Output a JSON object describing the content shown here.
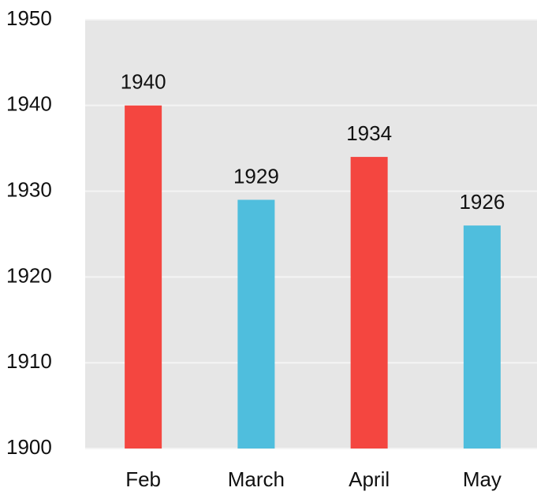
{
  "chart_data": {
    "type": "bar",
    "categories": [
      "Feb",
      "March",
      "April",
      "May"
    ],
    "values": [
      1940,
      1929,
      1934,
      1926
    ],
    "colors": [
      "#f44640",
      "#4fbedd",
      "#f44640",
      "#4fbedd"
    ],
    "ylim": [
      1900,
      1950
    ],
    "yticks": [
      1900,
      1910,
      1920,
      1930,
      1940,
      1950
    ],
    "grid": true
  }
}
